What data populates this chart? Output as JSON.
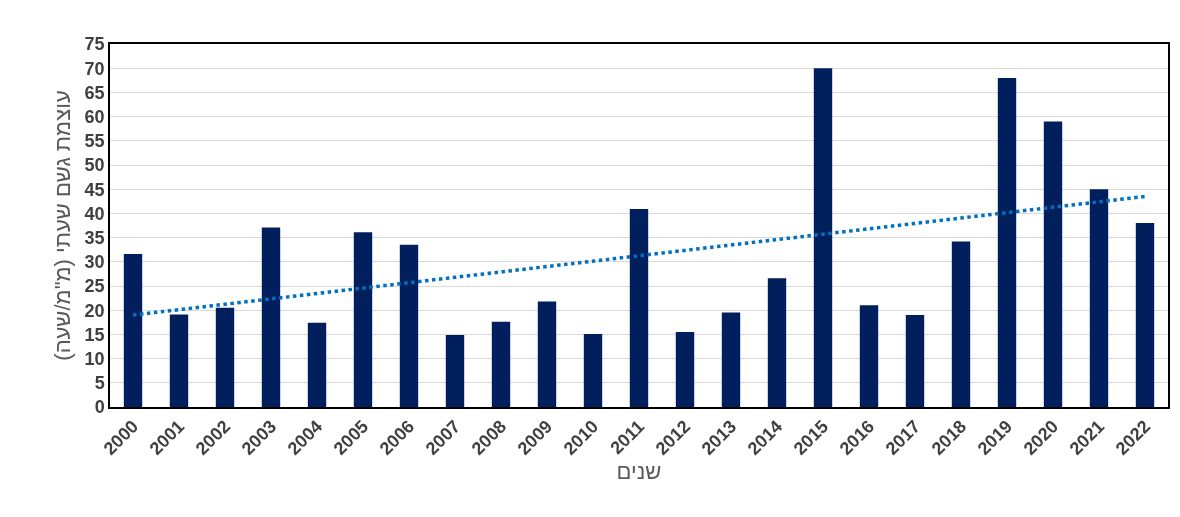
{
  "chart_data": {
    "type": "bar",
    "xlabel": "שנים",
    "ylabel": "עוצמת גשם שעתי (מ\"מ/שעה)",
    "categories": [
      "2000",
      "2001",
      "2002",
      "2003",
      "2004",
      "2005",
      "2006",
      "2007",
      "2008",
      "2009",
      "2010",
      "2011",
      "2012",
      "2013",
      "2014",
      "2015",
      "2016",
      "2017",
      "2018",
      "2019",
      "2020",
      "2021",
      "2022"
    ],
    "series": [
      {
        "color": "#001f5c",
        "values": [
          31.6,
          19.1,
          20.5,
          37.1,
          17.4,
          36.1,
          33.5,
          14.9,
          17.6,
          21.8,
          15.1,
          40.9,
          15.5,
          19.5,
          26.6,
          70,
          21,
          19,
          34.2,
          68,
          59,
          45,
          38
        ]
      },
      {
        "type": "line",
        "color": "#0070c0",
        "line_style": "dotted",
        "values": [
          19,
          null,
          null,
          null,
          null,
          null,
          null,
          null,
          null,
          null,
          null,
          null,
          null,
          null,
          null,
          null,
          null,
          null,
          null,
          null,
          null,
          null,
          43.5
        ]
      }
    ],
    "ylim": [
      0,
      75
    ],
    "yticks": [
      0,
      5,
      10,
      15,
      20,
      25,
      30,
      35,
      40,
      45,
      50,
      55,
      60,
      65,
      70,
      75
    ],
    "grid": "y"
  }
}
